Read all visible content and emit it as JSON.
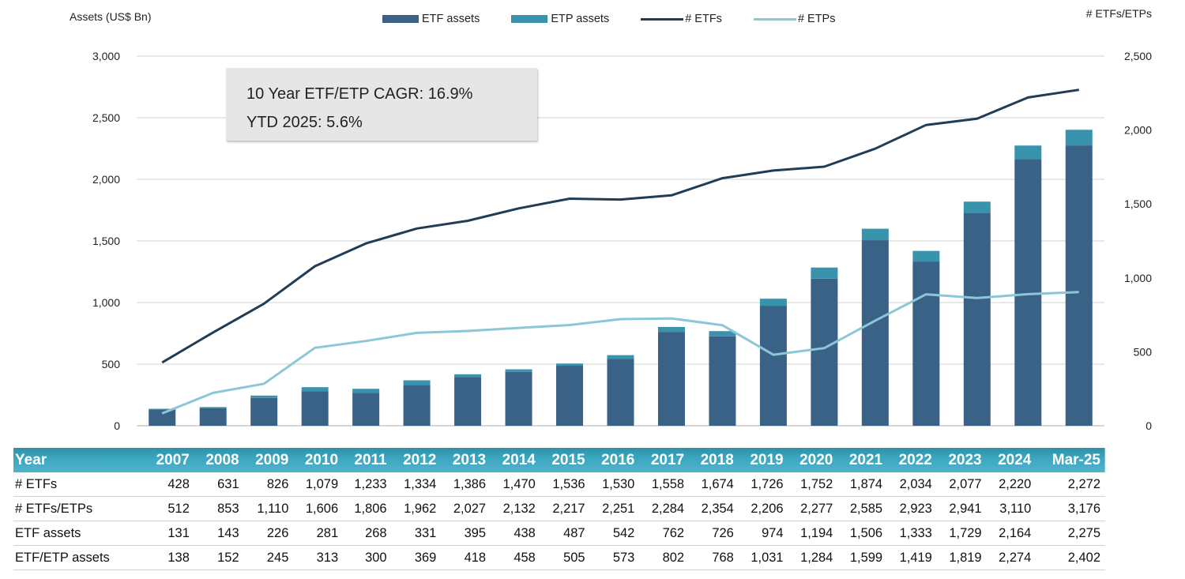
{
  "left_axis_title": "Assets (US$ Bn)",
  "right_axis_title": "# ETFs/ETPs",
  "legend": {
    "etf_assets": "ETF assets",
    "etp_assets": "ETP assets",
    "num_etfs": "# ETFs",
    "num_etps": "# ETPs"
  },
  "note": {
    "line1": "10 Year ETF/ETP CAGR: 16.9%",
    "line2": "YTD 2025: 5.6%"
  },
  "colors": {
    "etf_assets": "#3a6186",
    "etp_assets": "#3a93ad",
    "num_etfs": "#213d56",
    "num_etps": "#8cc7d8",
    "gridline": "#d9d9d9"
  },
  "chart_data": {
    "type": "bar",
    "categories": [
      "2007",
      "2008",
      "2009",
      "2010",
      "2011",
      "2012",
      "2013",
      "2014",
      "2015",
      "2016",
      "2017",
      "2018",
      "2019",
      "2020",
      "2021",
      "2022",
      "2023",
      "2024",
      "Mar-25"
    ],
    "y_left": {
      "min": 0,
      "max": 3000,
      "ticks": [
        "0",
        "500",
        "1,000",
        "1,500",
        "2,000",
        "2,500",
        "3,000"
      ],
      "tick_values": [
        0,
        500,
        1000,
        1500,
        2000,
        2500,
        3000
      ]
    },
    "y_right": {
      "min": 0,
      "max": 2500,
      "ticks": [
        "0",
        "500",
        "1,000",
        "1,500",
        "2,000",
        "2,500"
      ],
      "tick_values": [
        0,
        500,
        1000,
        1500,
        2000,
        2500
      ]
    },
    "series": [
      {
        "name": "ETF assets",
        "kind": "bar",
        "axis": "left",
        "values": [
          131,
          143,
          226,
          281,
          268,
          331,
          395,
          438,
          487,
          542,
          762,
          726,
          974,
          1194,
          1506,
          1333,
          1729,
          2164,
          2275
        ]
      },
      {
        "name": "ETP assets",
        "kind": "bar-stack",
        "axis": "left",
        "values": [
          7,
          9,
          19,
          32,
          32,
          38,
          23,
          20,
          18,
          31,
          40,
          42,
          57,
          90,
          93,
          86,
          90,
          110,
          127
        ]
      },
      {
        "name": "# ETFs",
        "kind": "line",
        "axis": "right",
        "values": [
          428,
          631,
          826,
          1079,
          1233,
          1334,
          1386,
          1470,
          1536,
          1530,
          1558,
          1674,
          1726,
          1752,
          1874,
          2034,
          2077,
          2220,
          2272
        ]
      },
      {
        "name": "# ETPs",
        "kind": "line",
        "axis": "right",
        "values": [
          84,
          222,
          284,
          527,
          573,
          628,
          641,
          662,
          681,
          721,
          726,
          680,
          480,
          525,
          711,
          889,
          864,
          890,
          904
        ]
      }
    ],
    "grid": true,
    "legend_position": "top"
  },
  "table": {
    "header_label": "Year",
    "rows": [
      {
        "label": "# ETFs",
        "values": [
          "428",
          "631",
          "826",
          "1,079",
          "1,233",
          "1,334",
          "1,386",
          "1,470",
          "1,536",
          "1,530",
          "1,558",
          "1,674",
          "1,726",
          "1,752",
          "1,874",
          "2,034",
          "2,077",
          "2,220",
          "2,272"
        ]
      },
      {
        "label": "# ETFs/ETPs",
        "values": [
          "512",
          "853",
          "1,110",
          "1,606",
          "1,806",
          "1,962",
          "2,027",
          "2,132",
          "2,217",
          "2,251",
          "2,284",
          "2,354",
          "2,206",
          "2,277",
          "2,585",
          "2,923",
          "2,941",
          "3,110",
          "3,176"
        ]
      },
      {
        "label": "ETF assets",
        "values": [
          "131",
          "143",
          "226",
          "281",
          "268",
          "331",
          "395",
          "438",
          "487",
          "542",
          "762",
          "726",
          "974",
          "1,194",
          "1,506",
          "1,333",
          "1,729",
          "2,164",
          "2,275"
        ]
      },
      {
        "label": "ETF/ETP assets",
        "values": [
          "138",
          "152",
          "245",
          "313",
          "300",
          "369",
          "418",
          "458",
          "505",
          "573",
          "802",
          "768",
          "1,031",
          "1,284",
          "1,599",
          "1,419",
          "1,819",
          "2,274",
          "2,402"
        ]
      }
    ]
  }
}
